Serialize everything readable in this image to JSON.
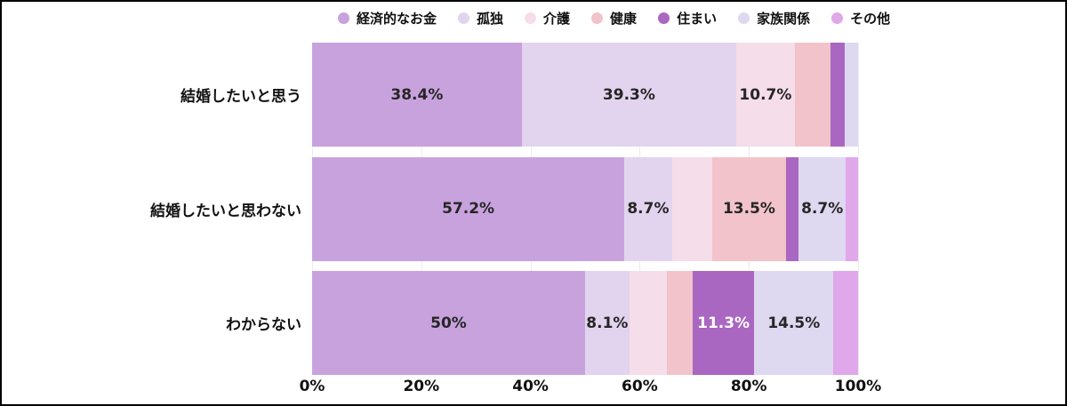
{
  "chart_data": {
    "type": "bar",
    "subtype": "horizontal-stacked-100",
    "title": "",
    "xlabel": "",
    "ylabel": "",
    "xlim": [
      0,
      100
    ],
    "grid": true,
    "grid_color": "#ececec",
    "legend_position": "top",
    "label_text_color": "#262626",
    "axis_text_color": "#111111",
    "categories": [
      "結婚したいと思う",
      "結婚したいと思わない",
      "わからない"
    ],
    "x_ticks": [
      {
        "value": 0,
        "label": "0%"
      },
      {
        "value": 20,
        "label": "20%"
      },
      {
        "value": 40,
        "label": "40%"
      },
      {
        "value": 60,
        "label": "60%"
      },
      {
        "value": 80,
        "label": "80%"
      },
      {
        "value": 100,
        "label": "100%"
      }
    ],
    "series": [
      {
        "name": "経済的なお金",
        "color": "#c8a2dd",
        "label_color": "#262626",
        "values": [
          38.4,
          57.2,
          50.0
        ],
        "labels": [
          "38.4%",
          "57.2%",
          "50%"
        ]
      },
      {
        "name": "孤独",
        "color": "#e2d4ee",
        "label_color": "#262626",
        "values": [
          39.3,
          8.7,
          8.1
        ],
        "labels": [
          "39.3%",
          "8.7%",
          "8.1%"
        ]
      },
      {
        "name": "介護",
        "color": "#f5dde9",
        "label_color": "#262626",
        "values": [
          10.7,
          7.4,
          6.9
        ],
        "labels": [
          "10.7%",
          "",
          ""
        ]
      },
      {
        "name": "健康",
        "color": "#f2c3ca",
        "label_color": "#262626",
        "values": [
          6.5,
          13.5,
          4.7
        ],
        "labels": [
          "",
          "13.5%",
          ""
        ]
      },
      {
        "name": "住まい",
        "color": "#aa67c1",
        "label_color": "#ffffff",
        "values": [
          2.6,
          2.3,
          11.3
        ],
        "labels": [
          "",
          "",
          "11.3%"
        ]
      },
      {
        "name": "家族関係",
        "color": "#ded8f1",
        "label_color": "#262626",
        "values": [
          2.5,
          8.7,
          14.5
        ],
        "labels": [
          "",
          "8.7%",
          "14.5%"
        ]
      },
      {
        "name": "その他",
        "color": "#e0a7ea",
        "label_color": "#262626",
        "values": [
          0.0,
          2.2,
          4.5
        ],
        "labels": [
          "",
          "",
          ""
        ]
      }
    ]
  }
}
